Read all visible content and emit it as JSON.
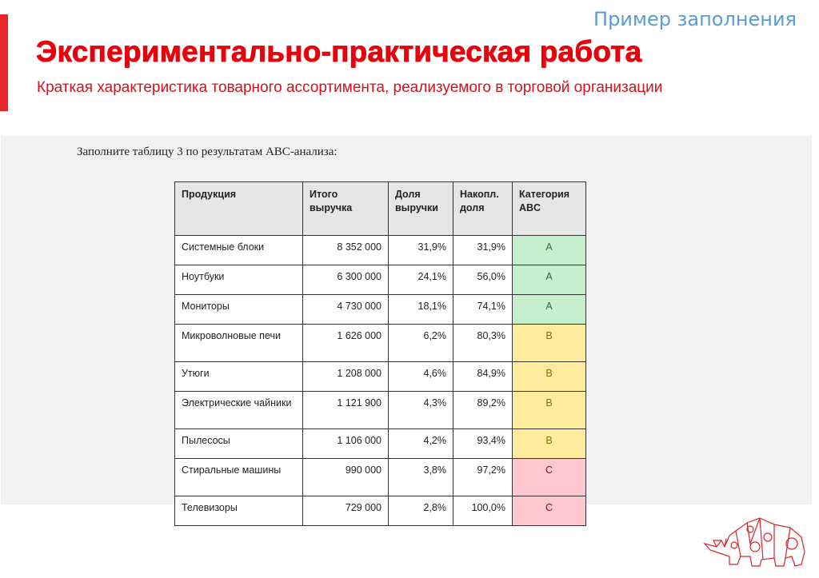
{
  "header": {
    "sample_label": "Пример заполнения",
    "title": "Экспериментально-практическая работа",
    "subtitle": "Краткая характеристика товарного ассортимента, реализуемого в торговой организации"
  },
  "content": {
    "instruction": "Заполните таблицу 3 по результатам АВС-анализа:"
  },
  "table": {
    "headers": [
      "Продукция",
      "Итого выручка",
      "Доля выручки",
      "Накопл. доля",
      "Категория ABC"
    ],
    "rows": [
      {
        "product": "Системные блоки",
        "revenue": "8 352 000",
        "share": "31,9%",
        "cumulative": "31,9%",
        "category": "A"
      },
      {
        "product": "Ноутбуки",
        "revenue": "6 300 000",
        "share": "24,1%",
        "cumulative": "56,0%",
        "category": "A"
      },
      {
        "product": "Мониторы",
        "revenue": "4 730 000",
        "share": "18,1%",
        "cumulative": "74,1%",
        "category": "A"
      },
      {
        "product": "Микроволновые печи",
        "revenue": "1 626 000",
        "share": "6,2%",
        "cumulative": "80,3%",
        "category": "B"
      },
      {
        "product": "Утюги",
        "revenue": "1 208 000",
        "share": "4,6%",
        "cumulative": "84,9%",
        "category": "B"
      },
      {
        "product": "Электрические чайники",
        "revenue": "1 121 900",
        "share": "4,3%",
        "cumulative": "89,2%",
        "category": "B"
      },
      {
        "product": "Пылесосы",
        "revenue": "1 106 000",
        "share": "4,2%",
        "cumulative": "93,4%",
        "category": "B"
      },
      {
        "product": "Стиральные машины",
        "revenue": "990 000",
        "share": "3,8%",
        "cumulative": "97,2%",
        "category": "C"
      },
      {
        "product": "Телевизоры",
        "revenue": "729 000",
        "share": "2,8%",
        "cumulative": "100,0%",
        "category": "C"
      }
    ],
    "category_colors": {
      "A": {
        "bg": "#c6efce",
        "fg": "#2e6b35"
      },
      "B": {
        "bg": "#ffeb9c",
        "fg": "#8a6d0b"
      },
      "C": {
        "bg": "#ffc7ce",
        "fg": "#9c0006"
      }
    }
  },
  "colors": {
    "accent_red": "#e8000a",
    "sample_blue": "#5b9bd5",
    "panel_gray": "#f1f1f1"
  },
  "logo": {
    "icon": "rhino-logo-icon"
  }
}
